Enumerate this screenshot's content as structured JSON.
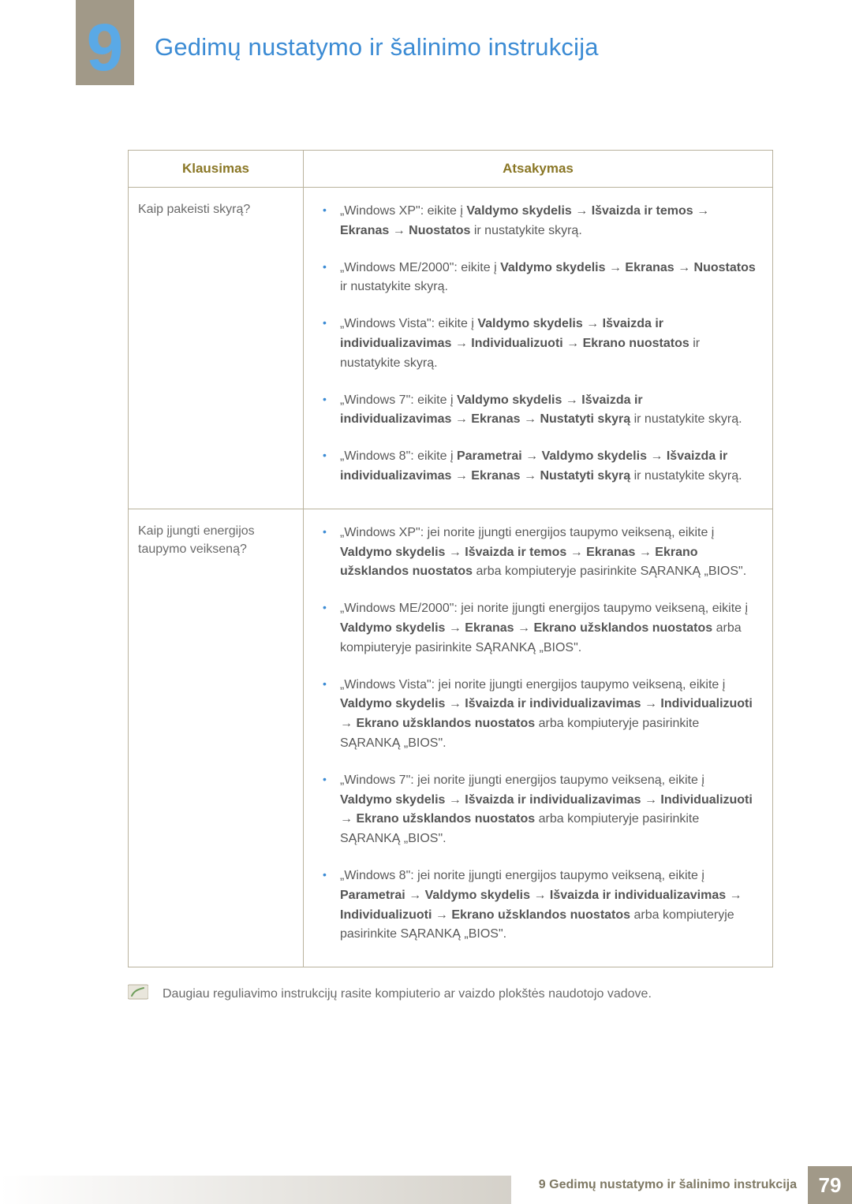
{
  "chapter_number": "9",
  "chapter_title": "Gedimų nustatymo ir šalinimo instrukcija",
  "table": {
    "header_q": "Klausimas",
    "header_a": "Atsakymas",
    "rows": [
      {
        "question": "Kaip pakeisti skyrą?",
        "answers": [
          [
            {
              "t": "„Windows XP\": eikite į "
            },
            {
              "t": "Valdymo skydelis",
              "b": 1
            },
            {
              "t": " → ",
              "a": 1
            },
            {
              "t": "Išvaizda ir temos",
              "b": 1
            },
            {
              "t": " → ",
              "a": 1
            },
            {
              "t": "Ekranas",
              "b": 1
            },
            {
              "t": " → ",
              "a": 1
            },
            {
              "t": "Nuostatos",
              "b": 1
            },
            {
              "t": " ir nustatykite skyrą."
            }
          ],
          [
            {
              "t": "„Windows ME/2000\": eikite į "
            },
            {
              "t": "Valdymo skydelis",
              "b": 1
            },
            {
              "t": " → ",
              "a": 1
            },
            {
              "t": "Ekranas",
              "b": 1
            },
            {
              "t": " → ",
              "a": 1
            },
            {
              "t": "Nuostatos",
              "b": 1
            },
            {
              "t": " ir nustatykite skyrą."
            }
          ],
          [
            {
              "t": "„Windows Vista\": eikite į "
            },
            {
              "t": "Valdymo skydelis",
              "b": 1
            },
            {
              "t": " → ",
              "a": 1
            },
            {
              "t": "Išvaizda ir individualizavimas",
              "b": 1
            },
            {
              "t": " → ",
              "a": 1
            },
            {
              "t": "Individualizuoti",
              "b": 1
            },
            {
              "t": " → ",
              "a": 1
            },
            {
              "t": "Ekrano nuostatos",
              "b": 1
            },
            {
              "t": " ir nustatykite skyrą."
            }
          ],
          [
            {
              "t": "„Windows 7\": eikite į "
            },
            {
              "t": "Valdymo skydelis",
              "b": 1
            },
            {
              "t": " → ",
              "a": 1
            },
            {
              "t": "Išvaizda ir individualizavimas",
              "b": 1
            },
            {
              "t": " → ",
              "a": 1
            },
            {
              "t": "Ekranas",
              "b": 1
            },
            {
              "t": " → ",
              "a": 1
            },
            {
              "t": "Nustatyti skyrą",
              "b": 1
            },
            {
              "t": " ir nustatykite skyrą."
            }
          ],
          [
            {
              "t": "„Windows 8\": eikite į "
            },
            {
              "t": "Parametrai",
              "b": 1
            },
            {
              "t": " → ",
              "a": 1
            },
            {
              "t": "Valdymo skydelis",
              "b": 1
            },
            {
              "t": " → ",
              "a": 1
            },
            {
              "t": "Išvaizda ir individualizavimas",
              "b": 1
            },
            {
              "t": " → ",
              "a": 1
            },
            {
              "t": "Ekranas",
              "b": 1
            },
            {
              "t": " → ",
              "a": 1
            },
            {
              "t": "Nustatyti skyrą",
              "b": 1
            },
            {
              "t": " ir nustatykite skyrą."
            }
          ]
        ]
      },
      {
        "question": "Kaip įjungti energijos taupymo veikseną?",
        "answers": [
          [
            {
              "t": "„Windows XP\": jei norite įjungti energijos taupymo veikseną, eikite į "
            },
            {
              "t": "Valdymo skydelis",
              "b": 1
            },
            {
              "t": " → ",
              "a": 1
            },
            {
              "t": "Išvaizda ir temos",
              "b": 1
            },
            {
              "t": " → ",
              "a": 1
            },
            {
              "t": "Ekranas",
              "b": 1
            },
            {
              "t": " → ",
              "a": 1
            },
            {
              "t": "Ekrano užsklandos nuostatos",
              "b": 1
            },
            {
              "t": " arba kompiuteryje pasirinkite SĄRANKĄ „BIOS\"."
            }
          ],
          [
            {
              "t": "„Windows ME/2000\": jei norite įjungti energijos taupymo veikseną, eikite į "
            },
            {
              "t": "Valdymo skydelis",
              "b": 1
            },
            {
              "t": " → ",
              "a": 1
            },
            {
              "t": "Ekranas",
              "b": 1
            },
            {
              "t": " → ",
              "a": 1
            },
            {
              "t": "Ekrano užsklandos nuostatos",
              "b": 1
            },
            {
              "t": " arba kompiuteryje pasirinkite SĄRANKĄ „BIOS\"."
            }
          ],
          [
            {
              "t": "„Windows Vista\": jei norite įjungti energijos taupymo veikseną, eikite į "
            },
            {
              "t": "Valdymo skydelis",
              "b": 1
            },
            {
              "t": " → ",
              "a": 1
            },
            {
              "t": "Išvaizda ir individualizavimas",
              "b": 1
            },
            {
              "t": " → ",
              "a": 1
            },
            {
              "t": "Individualizuoti",
              "b": 1
            },
            {
              "t": " → ",
              "a": 1
            },
            {
              "t": "Ekrano užsklandos nuostatos",
              "b": 1
            },
            {
              "t": " arba kompiuteryje pasirinkite SĄRANKĄ „BIOS\"."
            }
          ],
          [
            {
              "t": "„Windows 7\": jei norite įjungti energijos taupymo veikseną, eikite į "
            },
            {
              "t": "Valdymo skydelis",
              "b": 1
            },
            {
              "t": " → ",
              "a": 1
            },
            {
              "t": "Išvaizda ir individualizavimas",
              "b": 1
            },
            {
              "t": " → ",
              "a": 1
            },
            {
              "t": "Individualizuoti",
              "b": 1
            },
            {
              "t": " → ",
              "a": 1
            },
            {
              "t": "Ekrano užsklandos nuostatos",
              "b": 1
            },
            {
              "t": " arba kompiuteryje pasirinkite SĄRANKĄ „BIOS\"."
            }
          ],
          [
            {
              "t": "„Windows 8\": jei norite įjungti energijos taupymo veikseną, eikite į "
            },
            {
              "t": "Parametrai",
              "b": 1
            },
            {
              "t": " → ",
              "a": 1
            },
            {
              "t": "Valdymo skydelis",
              "b": 1
            },
            {
              "t": " → ",
              "a": 1
            },
            {
              "t": "Išvaizda ir individualizavimas",
              "b": 1
            },
            {
              "t": " → ",
              "a": 1
            },
            {
              "t": "Individualizuoti",
              "b": 1
            },
            {
              "t": " → ",
              "a": 1
            },
            {
              "t": "Ekrano užsklandos nuostatos",
              "b": 1
            },
            {
              "t": " arba kompiuteryje pasirinkite SĄRANKĄ „BIOS\"."
            }
          ]
        ]
      }
    ]
  },
  "note": "Daugiau reguliavimo instrukcijų rasite kompiuterio ar vaizdo plokštės naudotojo vadove.",
  "footer_label": "9 Gedimų nustatymo ir šalinimo instrukcija",
  "page_number": "79",
  "colors": {
    "accent_blue": "#3b8bd4",
    "tab_bg": "#a19988",
    "border": "#b9b29d",
    "header_text": "#8a7726"
  }
}
